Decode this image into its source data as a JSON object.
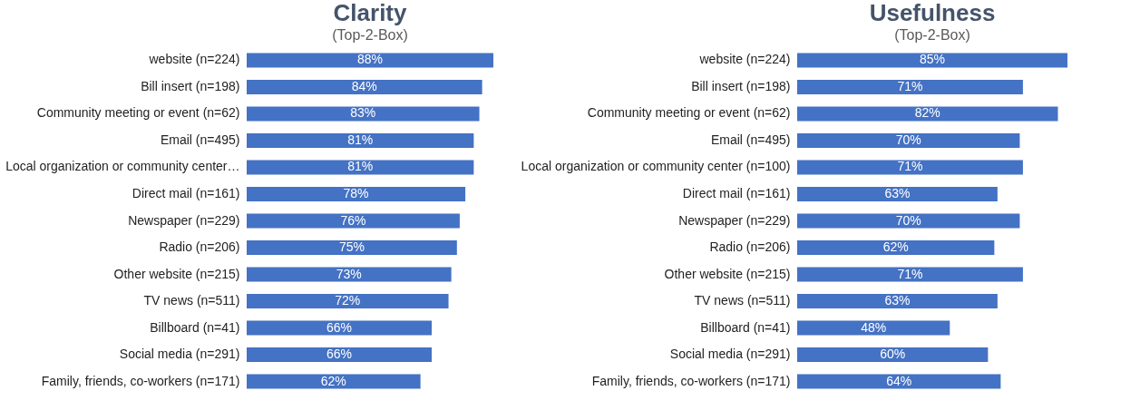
{
  "chart_data": [
    {
      "type": "bar",
      "orientation": "horizontal",
      "title": "Clarity",
      "subtitle": "(Top-2-Box)",
      "categories": [
        "website (n=224)",
        "Bill insert (n=198)",
        "Community meeting or event (n=62)",
        "Email (n=495)",
        "Local organization or community center…",
        "Direct mail (n=161)",
        "Newspaper (n=229)",
        "Radio (n=206)",
        "Other website (n=215)",
        "TV news (n=511)",
        "Billboard (n=41)",
        "Social media (n=291)",
        "Family, friends, co-workers (n=171)"
      ],
      "values": [
        88,
        84,
        83,
        81,
        81,
        78,
        76,
        75,
        73,
        72,
        66,
        66,
        62
      ],
      "value_labels": [
        "88%",
        "84%",
        "83%",
        "81%",
        "81%",
        "78%",
        "76%",
        "75%",
        "73%",
        "72%",
        "66%",
        "66%",
        "62%"
      ],
      "color": "#4472c4",
      "tick_labels": "y"
    },
    {
      "type": "bar",
      "orientation": "horizontal",
      "title": "Usefulness",
      "subtitle": "(Top-2-Box)",
      "categories": [
        "website (n=224)",
        "Bill insert (n=198)",
        "Community meeting or event (n=62)",
        "Email (n=495)",
        "Local organization or community center (n=100)",
        "Direct mail (n=161)",
        "Newspaper (n=229)",
        "Radio (n=206)",
        "Other website (n=215)",
        "TV news (n=511)",
        "Billboard (n=41)",
        "Social media (n=291)",
        "Family, friends, co-workers (n=171)"
      ],
      "values": [
        85,
        71,
        82,
        70,
        71,
        63,
        70,
        62,
        71,
        63,
        48,
        60,
        64
      ],
      "value_labels": [
        "85%",
        "71%",
        "82%",
        "70%",
        "71%",
        "63%",
        "70%",
        "62%",
        "71%",
        "63%",
        "48%",
        "60%",
        "64%"
      ],
      "color": "#4472c4",
      "tick_labels": "y"
    }
  ]
}
